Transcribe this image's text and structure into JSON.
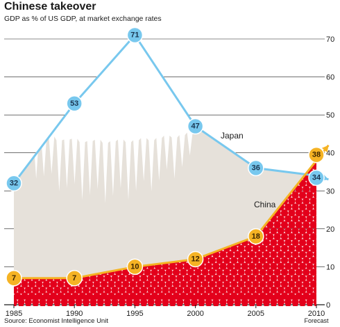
{
  "chart_data": {
    "type": "line",
    "title": "Chinese takeover",
    "subtitle": "GDP as % of US GDP,  at market exchange rates",
    "source": "Source: Economist Intelligence Unit",
    "x_ticks": [
      "1985",
      "1990",
      "1995",
      "2000",
      "2005",
      "2010"
    ],
    "x_note": "Forecast",
    "ylim": [
      0,
      70
    ],
    "y_ticks": [
      0,
      10,
      20,
      30,
      40,
      50,
      60,
      70
    ],
    "y_axis_side": "right",
    "grid": true,
    "series": [
      {
        "name": "Japan",
        "color": "#78c8ee",
        "points": [
          [
            1985,
            32
          ],
          [
            1990,
            53
          ],
          [
            1995,
            71
          ],
          [
            2000,
            47
          ],
          [
            2005,
            36
          ],
          [
            2010,
            34
          ]
        ],
        "labels": [
          "32",
          "53",
          "71",
          "47",
          "36",
          "34"
        ],
        "arrow_end": [
          2011,
          33
        ]
      },
      {
        "name": "China",
        "color": "#f5b324",
        "points": [
          [
            1985,
            7
          ],
          [
            1990,
            7
          ],
          [
            1995,
            10
          ],
          [
            2000,
            12
          ],
          [
            2005,
            18
          ],
          [
            2010,
            38
          ]
        ],
        "labels": [
          "7",
          "7",
          "10",
          "12",
          "18",
          "38"
        ],
        "arrow_end": [
          2011,
          42
        ]
      }
    ],
    "colors": {
      "mountain": "#e6e1da",
      "snow": "#ffffff",
      "crowd": "#e3001b",
      "grid": "#1a1a1a"
    }
  }
}
